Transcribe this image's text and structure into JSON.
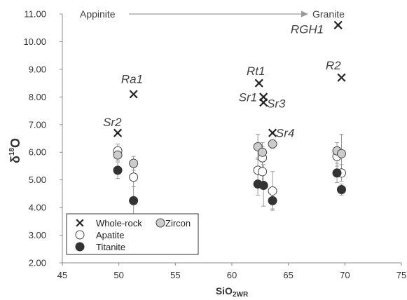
{
  "chart_data": {
    "type": "scatter",
    "xlabel": "SiO",
    "xlabel_sub": "2WR",
    "ylabel_delta": "δ",
    "ylabel_sup": "18",
    "ylabel_element": "O",
    "xlim": [
      45,
      75
    ],
    "ylim": [
      2,
      11
    ],
    "x_ticks": [
      "45",
      "50",
      "55",
      "60",
      "65",
      "70",
      "75"
    ],
    "y_ticks": [
      "2.00",
      "3.00",
      "4.00",
      "5.00",
      "6.00",
      "7.00",
      "8.00",
      "9.00",
      "10.00",
      "11.00"
    ],
    "grid": false,
    "trend": {
      "start": "Appinite",
      "end": "Granite"
    },
    "legend_position": "bottom-left",
    "legend": [
      {
        "name": "Whole-rock",
        "marker": "cross"
      },
      {
        "name": "Zircon",
        "marker": "circle-grey"
      },
      {
        "name": "Apatite",
        "marker": "circle-open"
      },
      {
        "name": "Titanite",
        "marker": "circle-filled"
      }
    ],
    "series": [
      {
        "name": "Whole-rock",
        "marker": "cross",
        "points": [
          {
            "x": 49.9,
            "y": 6.7
          },
          {
            "x": 51.3,
            "y": 8.1
          },
          {
            "x": 62.4,
            "y": 8.5
          },
          {
            "x": 62.8,
            "y": 8.0
          },
          {
            "x": 62.8,
            "y": 7.8
          },
          {
            "x": 63.6,
            "y": 6.7
          },
          {
            "x": 69.4,
            "y": 10.6
          },
          {
            "x": 69.7,
            "y": 8.7
          }
        ]
      },
      {
        "name": "Zircon",
        "marker": "circle-grey",
        "points": [
          {
            "x": 49.9,
            "y": 5.9,
            "err": 0.2
          },
          {
            "x": 51.3,
            "y": 5.6,
            "err": 0.25
          },
          {
            "x": 62.3,
            "y": 6.2,
            "err": 0.45
          },
          {
            "x": 62.7,
            "y": 6.0,
            "err": 0.35
          },
          {
            "x": 63.6,
            "y": 6.3,
            "err": 0.15
          },
          {
            "x": 69.3,
            "y": 6.05,
            "err": 0.3
          },
          {
            "x": 69.7,
            "y": 5.95,
            "err": 0.7
          }
        ]
      },
      {
        "name": "Apatite",
        "marker": "circle-open",
        "points": [
          {
            "x": 49.9,
            "y": 6.05,
            "err": 0.25
          },
          {
            "x": 51.3,
            "y": 5.1,
            "err": 0.35
          },
          {
            "x": 62.3,
            "y": 5.35,
            "err": 0.45
          },
          {
            "x": 62.7,
            "y": 5.3,
            "err": 0.6
          },
          {
            "x": 62.7,
            "y": 5.8,
            "err": 0.4
          },
          {
            "x": 63.6,
            "y": 4.6,
            "err": 0.7
          },
          {
            "x": 69.3,
            "y": 5.85,
            "err": 0.35
          },
          {
            "x": 69.7,
            "y": 5.25,
            "err": 0.3
          }
        ]
      },
      {
        "name": "Titanite",
        "marker": "circle-filled",
        "points": [
          {
            "x": 49.9,
            "y": 5.35,
            "err": 0.3
          },
          {
            "x": 51.3,
            "y": 4.25,
            "err": 0.5
          },
          {
            "x": 62.3,
            "y": 4.85,
            "err": 0.4
          },
          {
            "x": 62.8,
            "y": 4.8,
            "err": 0.75
          },
          {
            "x": 63.6,
            "y": 4.25,
            "err": 0.3
          },
          {
            "x": 69.3,
            "y": 5.25,
            "err": 0.35
          },
          {
            "x": 69.7,
            "y": 4.65,
            "err": 0.2
          }
        ]
      }
    ],
    "annotations": [
      {
        "text": "Sr2",
        "x": 48.6,
        "y": 6.95
      },
      {
        "text": "Ra1",
        "x": 50.2,
        "y": 8.5
      },
      {
        "text": "Rt1",
        "x": 61.3,
        "y": 8.8
      },
      {
        "text": "Sr1",
        "x": 60.6,
        "y": 7.85
      },
      {
        "text": "Sr3",
        "x": 63.1,
        "y": 7.62
      },
      {
        "text": "Sr4",
        "x": 63.9,
        "y": 6.55
      },
      {
        "text": "RGH1",
        "x": 65.2,
        "y": 10.3
      },
      {
        "text": "R2",
        "x": 68.3,
        "y": 9.0
      }
    ],
    "colors": {
      "axis": "#8c8c8c",
      "text": "#333333",
      "cross": "#222222",
      "zircon_fill": "#cccccc",
      "titanite_fill": "#333333",
      "marker_stroke": "#444444",
      "error_bar": "#999999",
      "arrow": "#999999"
    }
  }
}
